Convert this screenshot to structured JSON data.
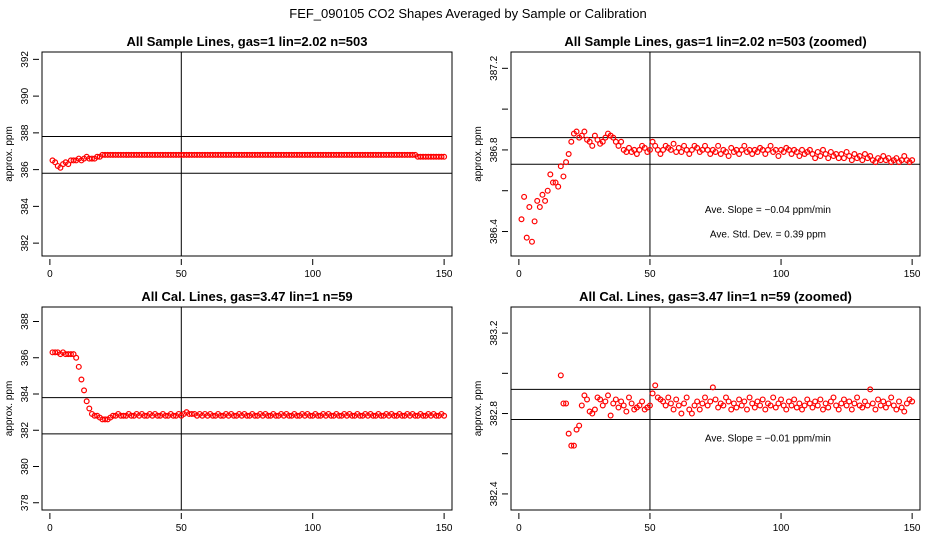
{
  "figure": {
    "title": "FEF_090105  CO2 Shapes Averaged by Sample or Calibration"
  },
  "chart_data": [
    {
      "type": "scatter",
      "title": "All Sample Lines, gas=1 lin=2.02 n=503",
      "xlabel": "",
      "ylabel": "approx. ppm",
      "xlim": [
        -3,
        153
      ],
      "ylim": [
        381.3,
        392.4
      ],
      "xticks": [
        0,
        50,
        100,
        150
      ],
      "yticks": [
        382,
        384,
        386,
        388,
        390,
        392
      ],
      "hlines": [
        385.8,
        387.8
      ],
      "vlines": [
        50
      ],
      "annotations": [],
      "marker_color": "#ff0000",
      "x": [
        1,
        2,
        3,
        4,
        5,
        6,
        7,
        8,
        9,
        10,
        11,
        12,
        13,
        14,
        15,
        16,
        17,
        18,
        19,
        20,
        21,
        22,
        23,
        24,
        25,
        26,
        27,
        28,
        29,
        30,
        31,
        32,
        33,
        34,
        35,
        36,
        37,
        38,
        39,
        40,
        41,
        42,
        43,
        44,
        45,
        46,
        47,
        48,
        49,
        50,
        51,
        52,
        53,
        54,
        55,
        56,
        57,
        58,
        59,
        60,
        61,
        62,
        63,
        64,
        65,
        66,
        67,
        68,
        69,
        70,
        71,
        72,
        73,
        74,
        75,
        76,
        77,
        78,
        79,
        80,
        81,
        82,
        83,
        84,
        85,
        86,
        87,
        88,
        89,
        90,
        91,
        92,
        93,
        94,
        95,
        96,
        97,
        98,
        99,
        100,
        101,
        102,
        103,
        104,
        105,
        106,
        107,
        108,
        109,
        110,
        111,
        112,
        113,
        114,
        115,
        116,
        117,
        118,
        119,
        120,
        121,
        122,
        123,
        124,
        125,
        126,
        127,
        128,
        129,
        130,
        131,
        132,
        133,
        134,
        135,
        136,
        137,
        138,
        139,
        140,
        141,
        142,
        143,
        144,
        145,
        146,
        147,
        148,
        149,
        150
      ],
      "y": [
        386.5,
        386.4,
        386.2,
        386.1,
        386.3,
        386.4,
        386.3,
        386.5,
        386.5,
        386.5,
        386.6,
        386.5,
        386.6,
        386.7,
        386.6,
        386.6,
        386.6,
        386.7,
        386.7,
        386.8,
        386.8,
        386.8,
        386.8,
        386.8,
        386.8,
        386.8,
        386.8,
        386.8,
        386.8,
        386.8,
        386.8,
        386.8,
        386.8,
        386.8,
        386.8,
        386.8,
        386.8,
        386.8,
        386.8,
        386.8,
        386.8,
        386.8,
        386.8,
        386.8,
        386.8,
        386.8,
        386.8,
        386.8,
        386.8,
        386.8,
        386.8,
        386.8,
        386.8,
        386.8,
        386.8,
        386.8,
        386.8,
        386.8,
        386.8,
        386.8,
        386.8,
        386.8,
        386.8,
        386.8,
        386.8,
        386.8,
        386.8,
        386.8,
        386.8,
        386.8,
        386.8,
        386.8,
        386.8,
        386.8,
        386.8,
        386.8,
        386.8,
        386.8,
        386.8,
        386.8,
        386.8,
        386.8,
        386.8,
        386.8,
        386.8,
        386.8,
        386.8,
        386.8,
        386.8,
        386.8,
        386.8,
        386.8,
        386.8,
        386.8,
        386.8,
        386.8,
        386.8,
        386.8,
        386.8,
        386.8,
        386.8,
        386.8,
        386.8,
        386.8,
        386.8,
        386.8,
        386.8,
        386.8,
        386.8,
        386.8,
        386.8,
        386.8,
        386.8,
        386.8,
        386.8,
        386.8,
        386.8,
        386.8,
        386.8,
        386.8,
        386.8,
        386.8,
        386.8,
        386.8,
        386.8,
        386.8,
        386.8,
        386.8,
        386.8,
        386.8,
        386.8,
        386.8,
        386.8,
        386.8,
        386.8,
        386.8,
        386.8,
        386.8,
        386.8,
        386.7,
        386.7,
        386.7,
        386.7,
        386.7,
        386.7,
        386.7,
        386.7,
        386.7,
        386.7,
        386.7
      ]
    },
    {
      "type": "scatter",
      "title": "All Sample Lines, gas=1 lin=2.02 n=503 (zoomed)",
      "xlabel": "",
      "ylabel": "approx. ppm",
      "xlim": [
        -3,
        153
      ],
      "ylim": [
        386.28,
        387.28
      ],
      "xticks": [
        0,
        50,
        100,
        150
      ],
      "yticks": [
        386.4,
        386.6,
        386.8,
        387.0,
        387.2
      ],
      "ytick_labels": [
        "386.4",
        "",
        "386.8",
        "",
        "387.2"
      ],
      "hlines": [
        386.73,
        386.86
      ],
      "vlines": [
        50
      ],
      "annotations": [
        {
          "text": "Ave. Slope =  −0.04  ppm/min",
          "x": 95,
          "y": 386.49
        },
        {
          "text": "Ave. Std. Dev. =  0.39  ppm",
          "x": 95,
          "y": 386.37
        }
      ],
      "marker_color": "#ff0000",
      "x": [
        1,
        2,
        3,
        4,
        5,
        6,
        7,
        8,
        9,
        10,
        11,
        12,
        13,
        14,
        15,
        16,
        17,
        18,
        19,
        20,
        21,
        22,
        23,
        24,
        25,
        26,
        27,
        28,
        29,
        30,
        31,
        32,
        33,
        34,
        35,
        36,
        37,
        38,
        39,
        40,
        41,
        42,
        43,
        44,
        45,
        46,
        47,
        48,
        49,
        50,
        51,
        52,
        53,
        54,
        55,
        56,
        57,
        58,
        59,
        60,
        61,
        62,
        63,
        64,
        65,
        66,
        67,
        68,
        69,
        70,
        71,
        72,
        73,
        74,
        75,
        76,
        77,
        78,
        79,
        80,
        81,
        82,
        83,
        84,
        85,
        86,
        87,
        88,
        89,
        90,
        91,
        92,
        93,
        94,
        95,
        96,
        97,
        98,
        99,
        100,
        101,
        102,
        103,
        104,
        105,
        106,
        107,
        108,
        109,
        110,
        111,
        112,
        113,
        114,
        115,
        116,
        117,
        118,
        119,
        120,
        121,
        122,
        123,
        124,
        125,
        126,
        127,
        128,
        129,
        130,
        131,
        132,
        133,
        134,
        135,
        136,
        137,
        138,
        139,
        140,
        141,
        142,
        143,
        144,
        145,
        146,
        147,
        148,
        149,
        150
      ],
      "y": [
        386.46,
        386.57,
        386.37,
        386.52,
        386.35,
        386.45,
        386.55,
        386.52,
        386.58,
        386.55,
        386.6,
        386.68,
        386.64,
        386.64,
        386.62,
        386.72,
        386.67,
        386.74,
        386.78,
        386.84,
        386.88,
        386.89,
        386.86,
        386.87,
        386.89,
        386.85,
        386.84,
        386.82,
        386.87,
        386.85,
        386.83,
        386.84,
        386.86,
        386.88,
        386.87,
        386.86,
        386.84,
        386.82,
        386.84,
        386.8,
        386.79,
        386.81,
        386.79,
        386.8,
        386.78,
        386.8,
        386.82,
        386.81,
        386.79,
        386.8,
        386.84,
        386.82,
        386.8,
        386.78,
        386.8,
        386.82,
        386.81,
        386.8,
        386.83,
        386.79,
        386.81,
        386.79,
        386.82,
        386.8,
        386.78,
        386.8,
        386.82,
        386.81,
        386.79,
        386.8,
        386.82,
        386.8,
        386.78,
        386.8,
        386.79,
        386.82,
        386.78,
        386.8,
        386.79,
        386.77,
        386.81,
        386.79,
        386.8,
        386.78,
        386.8,
        386.82,
        386.79,
        386.8,
        386.78,
        386.8,
        386.79,
        386.81,
        386.8,
        386.78,
        386.8,
        386.82,
        386.79,
        386.8,
        386.77,
        386.8,
        386.79,
        386.81,
        386.8,
        386.78,
        386.8,
        386.79,
        386.77,
        386.8,
        386.78,
        386.79,
        386.8,
        386.78,
        386.76,
        386.79,
        386.77,
        386.8,
        386.78,
        386.76,
        386.79,
        386.77,
        386.78,
        386.76,
        386.78,
        386.76,
        386.79,
        386.77,
        386.75,
        386.78,
        386.76,
        386.77,
        386.75,
        386.78,
        386.76,
        386.77,
        386.75,
        386.74,
        386.76,
        386.75,
        386.77,
        386.75,
        386.76,
        386.74,
        386.75,
        386.76,
        386.74,
        386.75,
        386.77,
        386.75,
        386.74,
        386.75
      ]
    },
    {
      "type": "scatter",
      "title": "All Cal. Lines, gas=3.47 lin=1 n=59",
      "xlabel": "",
      "ylabel": "approx. ppm",
      "xlim": [
        -3,
        153
      ],
      "ylim": [
        377.6,
        388.8
      ],
      "xticks": [
        0,
        50,
        100,
        150
      ],
      "yticks": [
        378,
        380,
        382,
        384,
        386,
        388
      ],
      "hlines": [
        381.8,
        383.8
      ],
      "vlines": [
        50
      ],
      "annotations": [],
      "marker_color": "#ff0000",
      "x": [
        1,
        2,
        3,
        4,
        5,
        6,
        7,
        8,
        9,
        10,
        11,
        12,
        13,
        14,
        15,
        16,
        17,
        18,
        19,
        20,
        21,
        22,
        23,
        24,
        25,
        26,
        27,
        28,
        29,
        30,
        31,
        32,
        33,
        34,
        35,
        36,
        37,
        38,
        39,
        40,
        41,
        42,
        43,
        44,
        45,
        46,
        47,
        48,
        49,
        50,
        51,
        52,
        53,
        54,
        55,
        56,
        57,
        58,
        59,
        60,
        61,
        62,
        63,
        64,
        65,
        66,
        67,
        68,
        69,
        70,
        71,
        72,
        73,
        74,
        75,
        76,
        77,
        78,
        79,
        80,
        81,
        82,
        83,
        84,
        85,
        86,
        87,
        88,
        89,
        90,
        91,
        92,
        93,
        94,
        95,
        96,
        97,
        98,
        99,
        100,
        101,
        102,
        103,
        104,
        105,
        106,
        107,
        108,
        109,
        110,
        111,
        112,
        113,
        114,
        115,
        116,
        117,
        118,
        119,
        120,
        121,
        122,
        123,
        124,
        125,
        126,
        127,
        128,
        129,
        130,
        131,
        132,
        133,
        134,
        135,
        136,
        137,
        138,
        139,
        140,
        141,
        142,
        143,
        144,
        145,
        146,
        147,
        148,
        149,
        150
      ],
      "y": [
        386.3,
        386.3,
        386.3,
        386.2,
        386.3,
        386.2,
        386.2,
        386.2,
        386.2,
        386.0,
        385.5,
        384.8,
        384.2,
        383.6,
        383.2,
        382.9,
        382.8,
        382.8,
        382.7,
        382.6,
        382.6,
        382.6,
        382.7,
        382.8,
        382.8,
        382.9,
        382.8,
        382.8,
        382.8,
        382.9,
        382.8,
        382.8,
        382.9,
        382.8,
        382.9,
        382.8,
        382.8,
        382.9,
        382.8,
        382.9,
        382.8,
        382.8,
        382.9,
        382.8,
        382.8,
        382.9,
        382.8,
        382.8,
        382.9,
        382.8,
        382.9,
        383.0,
        382.9,
        382.9,
        382.9,
        382.8,
        382.9,
        382.8,
        382.9,
        382.8,
        382.9,
        382.8,
        382.8,
        382.9,
        382.8,
        382.8,
        382.9,
        382.8,
        382.9,
        382.8,
        382.8,
        382.9,
        382.8,
        382.9,
        382.8,
        382.8,
        382.9,
        382.8,
        382.8,
        382.9,
        382.8,
        382.9,
        382.8,
        382.8,
        382.9,
        382.8,
        382.8,
        382.9,
        382.8,
        382.9,
        382.8,
        382.8,
        382.9,
        382.8,
        382.8,
        382.9,
        382.8,
        382.9,
        382.8,
        382.8,
        382.9,
        382.8,
        382.8,
        382.9,
        382.8,
        382.9,
        382.8,
        382.8,
        382.9,
        382.8,
        382.8,
        382.9,
        382.8,
        382.9,
        382.8,
        382.8,
        382.9,
        382.8,
        382.8,
        382.9,
        382.8,
        382.9,
        382.8,
        382.8,
        382.9,
        382.8,
        382.8,
        382.9,
        382.8,
        382.9,
        382.8,
        382.8,
        382.9,
        382.8,
        382.8,
        382.9,
        382.8,
        382.9,
        382.8,
        382.8,
        382.9,
        382.8,
        382.8,
        382.9,
        382.8,
        382.9,
        382.8,
        382.8,
        382.9,
        382.8
      ]
    },
    {
      "type": "scatter",
      "title": "All Cal. Lines, gas=3.47 lin=1 n=59 (zoomed)",
      "xlabel": "",
      "ylabel": "approx. ppm",
      "xlim": [
        -3,
        153
      ],
      "ylim": [
        382.32,
        383.33
      ],
      "xticks": [
        0,
        50,
        100,
        150
      ],
      "yticks": [
        382.4,
        382.6,
        382.8,
        383.0,
        383.2
      ],
      "ytick_labels": [
        "382.4",
        "",
        "382.8",
        "",
        "383.2"
      ],
      "hlines": [
        382.77,
        382.92
      ],
      "vlines": [
        50
      ],
      "annotations": [
        {
          "text": "Ave. Slope =  −0.01  ppm/min",
          "x": 95,
          "y": 382.66
        }
      ],
      "marker_color": "#ff0000",
      "x": [
        16,
        17,
        18,
        19,
        20,
        21,
        22,
        23,
        24,
        25,
        26,
        27,
        28,
        29,
        30,
        31,
        32,
        33,
        34,
        35,
        36,
        37,
        38,
        39,
        40,
        41,
        42,
        43,
        44,
        45,
        46,
        47,
        48,
        49,
        50,
        51,
        52,
        53,
        54,
        55,
        56,
        57,
        58,
        59,
        60,
        61,
        62,
        63,
        64,
        65,
        66,
        67,
        68,
        69,
        70,
        71,
        72,
        73,
        74,
        75,
        76,
        77,
        78,
        79,
        80,
        81,
        82,
        83,
        84,
        85,
        86,
        87,
        88,
        89,
        90,
        91,
        92,
        93,
        94,
        95,
        96,
        97,
        98,
        99,
        100,
        101,
        102,
        103,
        104,
        105,
        106,
        107,
        108,
        109,
        110,
        111,
        112,
        113,
        114,
        115,
        116,
        117,
        118,
        119,
        120,
        121,
        122,
        123,
        124,
        125,
        126,
        127,
        128,
        129,
        130,
        131,
        132,
        133,
        134,
        135,
        136,
        137,
        138,
        139,
        140,
        141,
        142,
        143,
        144,
        145,
        146,
        147,
        148,
        149,
        150
      ],
      "y": [
        382.99,
        382.85,
        382.85,
        382.7,
        382.64,
        382.64,
        382.72,
        382.74,
        382.84,
        382.89,
        382.87,
        382.81,
        382.8,
        382.82,
        382.88,
        382.87,
        382.84,
        382.86,
        382.89,
        382.79,
        382.85,
        382.87,
        382.83,
        382.86,
        382.84,
        382.81,
        382.88,
        382.85,
        382.82,
        382.83,
        382.84,
        382.86,
        382.82,
        382.83,
        382.84,
        382.9,
        382.94,
        382.88,
        382.87,
        382.86,
        382.84,
        382.88,
        382.85,
        382.82,
        382.87,
        382.84,
        382.8,
        382.85,
        382.88,
        382.82,
        382.8,
        382.84,
        382.86,
        382.82,
        382.85,
        382.88,
        382.84,
        382.86,
        382.93,
        382.87,
        382.83,
        382.85,
        382.84,
        382.88,
        382.86,
        382.82,
        382.85,
        382.83,
        382.87,
        382.84,
        382.86,
        382.82,
        382.88,
        382.85,
        382.83,
        382.86,
        382.84,
        382.87,
        382.82,
        382.85,
        382.84,
        382.88,
        382.83,
        382.85,
        382.87,
        382.84,
        382.82,
        382.86,
        382.84,
        382.87,
        382.83,
        382.85,
        382.82,
        382.84,
        382.87,
        382.85,
        382.83,
        382.86,
        382.84,
        382.87,
        382.82,
        382.85,
        382.83,
        382.86,
        382.88,
        382.84,
        382.82,
        382.85,
        382.87,
        382.84,
        382.86,
        382.82,
        382.85,
        382.88,
        382.84,
        382.83,
        382.86,
        382.84,
        382.92,
        382.85,
        382.82,
        382.87,
        382.84,
        382.86,
        382.83,
        382.85,
        382.88,
        382.84,
        382.82,
        382.86,
        382.83,
        382.81,
        382.85,
        382.87,
        382.86
      ]
    }
  ]
}
